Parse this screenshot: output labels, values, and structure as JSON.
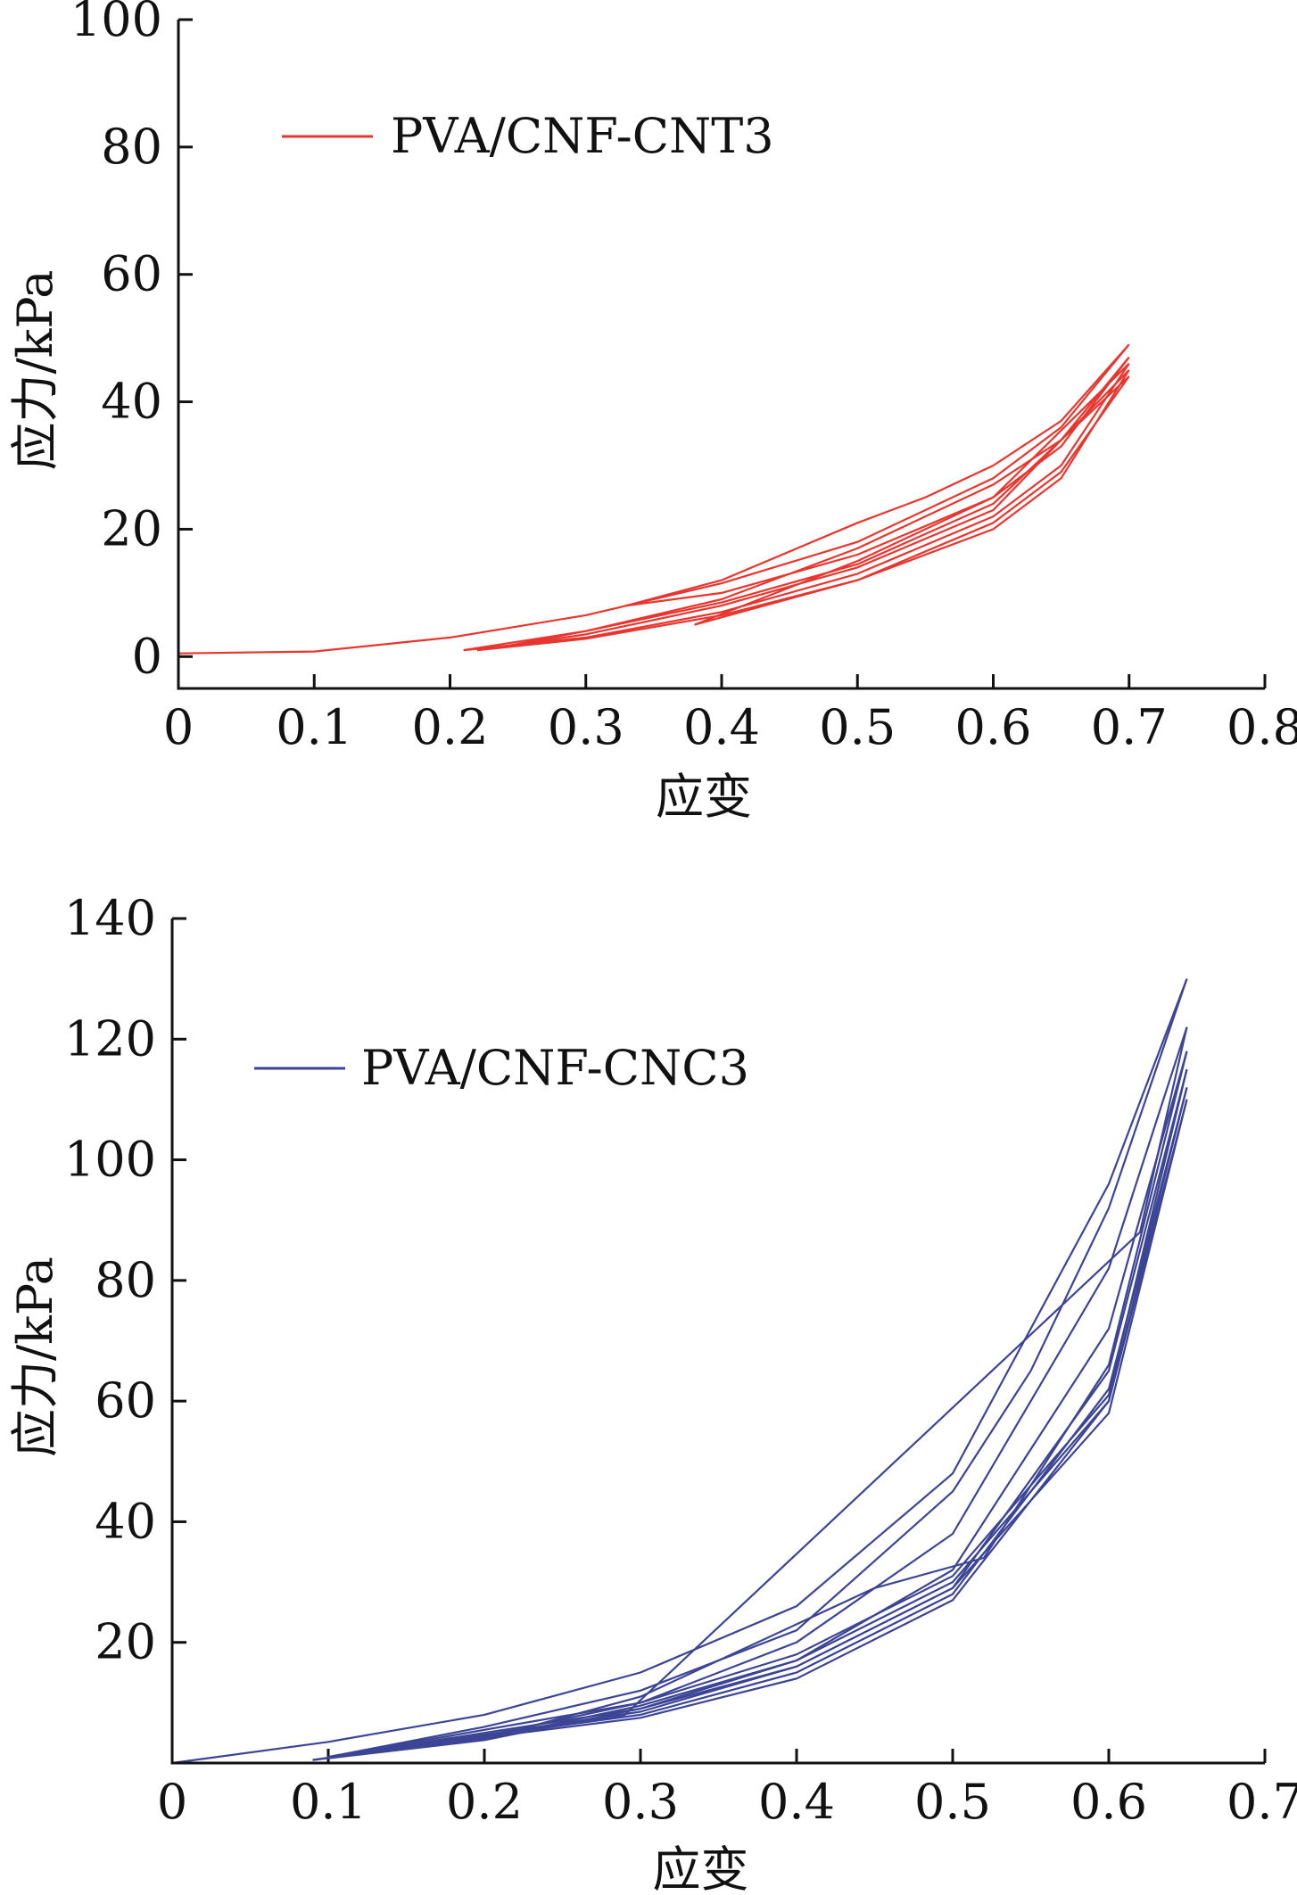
{
  "chart_data": [
    {
      "type": "line",
      "xlabel": "应变",
      "ylabel": "应力/kPa",
      "xlim": [
        0,
        0.8
      ],
      "ylim": [
        -5,
        100
      ],
      "xticks": [
        "0",
        "0.1",
        "0.2",
        "0.3",
        "0.4",
        "0.5",
        "0.6",
        "0.7",
        "0.8"
      ],
      "yticks": [
        "0",
        "20",
        "40",
        "60",
        "80",
        "100"
      ],
      "legend_position": "top-left",
      "grid": false,
      "series": [
        {
          "name": "PVA/CNF-CNT3",
          "color": "#e8352e",
          "cycles": [
            {
              "load": [
                [
                  0,
                  0.5
                ],
                [
                  0.1,
                  0.8
                ],
                [
                  0.2,
                  3
                ],
                [
                  0.3,
                  6.5
                ],
                [
                  0.4,
                  11.5
                ],
                [
                  0.5,
                  18
                ],
                [
                  0.6,
                  28
                ],
                [
                  0.65,
                  36
                ],
                [
                  0.7,
                  49
                ]
              ],
              "unload": [
                [
                  0.7,
                  49
                ],
                [
                  0.65,
                  37
                ],
                [
                  0.6,
                  30
                ],
                [
                  0.55,
                  25
                ],
                [
                  0.5,
                  21
                ],
                [
                  0.4,
                  12
                ],
                [
                  0.33,
                  8
                ]
              ]
            },
            {
              "load": [
                [
                  0.33,
                  8
                ],
                [
                  0.4,
                  10
                ],
                [
                  0.5,
                  16
                ],
                [
                  0.6,
                  25
                ],
                [
                  0.65,
                  33
                ],
                [
                  0.7,
                  47
                ]
              ],
              "unload": [
                [
                  0.7,
                  47
                ],
                [
                  0.65,
                  34
                ],
                [
                  0.6,
                  27
                ],
                [
                  0.5,
                  17
                ],
                [
                  0.4,
                  9
                ],
                [
                  0.3,
                  4
                ],
                [
                  0.21,
                  1
                ]
              ]
            },
            {
              "load": [
                [
                  0.21,
                  1
                ],
                [
                  0.3,
                  3
                ],
                [
                  0.4,
                  7
                ],
                [
                  0.5,
                  13
                ],
                [
                  0.6,
                  22
                ],
                [
                  0.65,
                  30
                ],
                [
                  0.7,
                  46
                ]
              ],
              "unload": [
                [
                  0.7,
                  46
                ],
                [
                  0.6,
                  25
                ],
                [
                  0.5,
                  15
                ],
                [
                  0.38,
                  5
                ]
              ]
            },
            {
              "load": [
                [
                  0.38,
                  5
                ],
                [
                  0.5,
                  12
                ],
                [
                  0.6,
                  20
                ],
                [
                  0.65,
                  28
                ],
                [
                  0.7,
                  45
                ]
              ],
              "unload": [
                [
                  0.7,
                  45
                ],
                [
                  0.6,
                  23
                ],
                [
                  0.5,
                  14
                ],
                [
                  0.4,
                  8
                ],
                [
                  0.3,
                  3.5
                ],
                [
                  0.22,
                  1
                ]
              ]
            },
            {
              "load": [
                [
                  0.22,
                  1
                ],
                [
                  0.3,
                  2.8
                ],
                [
                  0.4,
                  6.5
                ],
                [
                  0.5,
                  12
                ],
                [
                  0.6,
                  21
                ],
                [
                  0.65,
                  29
                ],
                [
                  0.7,
                  44
                ]
              ],
              "unload": [
                [
                  0.7,
                  44
                ],
                [
                  0.6,
                  24
                ],
                [
                  0.5,
                  14.5
                ],
                [
                  0.4,
                  8.5
                ],
                [
                  0.3,
                  4
                ],
                [
                  0.23,
                  1.2
                ]
              ]
            }
          ]
        }
      ]
    },
    {
      "type": "line",
      "xlabel": "应变",
      "ylabel": "应力/kPa",
      "xlim": [
        0,
        0.7
      ],
      "ylim": [
        0,
        140
      ],
      "xticks": [
        "0",
        "0.1",
        "0.2",
        "0.3",
        "0.4",
        "0.5",
        "0.6",
        "0.7"
      ],
      "yticks": [
        "20",
        "40",
        "60",
        "80",
        "100",
        "120",
        "140"
      ],
      "legend_position": "top-left",
      "grid": false,
      "series": [
        {
          "name": "PVA/CNF-CNC3",
          "color": "#3c4595",
          "cycles": [
            {
              "load": [
                [
                  0,
                  0
                ],
                [
                  0.1,
                  3.5
                ],
                [
                  0.2,
                  8
                ],
                [
                  0.3,
                  15
                ],
                [
                  0.4,
                  26
                ],
                [
                  0.5,
                  48
                ],
                [
                  0.6,
                  96
                ],
                [
                  0.65,
                  130
                ]
              ],
              "unload": [
                [
                  0.65,
                  130
                ],
                [
                  0.6,
                  92
                ],
                [
                  0.55,
                  65
                ],
                [
                  0.5,
                  45
                ],
                [
                  0.4,
                  22
                ],
                [
                  0.3,
                  12
                ],
                [
                  0.2,
                  6
                ],
                [
                  0.1,
                  1
                ]
              ]
            },
            {
              "load": [
                [
                  0.1,
                  1
                ],
                [
                  0.3,
                  10
                ],
                [
                  0.4,
                  20
                ],
                [
                  0.5,
                  38
                ],
                [
                  0.6,
                  82
                ],
                [
                  0.65,
                  122
                ]
              ],
              "unload": [
                [
                  0.65,
                  122
                ],
                [
                  0.62,
                  88
                ],
                [
                  0.29,
                  8
                ],
                [
                  0.22,
                  5
                ],
                [
                  0.1,
                  1
                ]
              ]
            },
            {
              "load": [
                [
                  0.1,
                  1
                ],
                [
                  0.3,
                  9
                ],
                [
                  0.4,
                  17
                ],
                [
                  0.5,
                  32
                ],
                [
                  0.6,
                  72
                ],
                [
                  0.65,
                  118
                ]
              ],
              "unload": [
                [
                  0.65,
                  118
                ],
                [
                  0.6,
                  66
                ],
                [
                  0.52,
                  34
                ],
                [
                  0.45,
                  29
                ],
                [
                  0.3,
                  11
                ],
                [
                  0.2,
                  4
                ],
                [
                  0.09,
                  0.5
                ]
              ]
            },
            {
              "load": [
                [
                  0.09,
                  0.5
                ],
                [
                  0.3,
                  8.5
                ],
                [
                  0.4,
                  16
                ],
                [
                  0.5,
                  29
                ],
                [
                  0.6,
                  65
                ],
                [
                  0.65,
                  115
                ]
              ],
              "unload": [
                [
                  0.65,
                  115
                ],
                [
                  0.6,
                  61
                ],
                [
                  0.5,
                  31
                ],
                [
                  0.4,
                  18
                ],
                [
                  0.3,
                  10
                ],
                [
                  0.2,
                  4.5
                ],
                [
                  0.1,
                  1
                ]
              ]
            },
            {
              "load": [
                [
                  0.1,
                  1
                ],
                [
                  0.3,
                  8
                ],
                [
                  0.4,
                  15
                ],
                [
                  0.5,
                  28
                ],
                [
                  0.6,
                  62
                ],
                [
                  0.65,
                  112
                ]
              ],
              "unload": [
                [
                  0.65,
                  112
                ],
                [
                  0.6,
                  60
                ],
                [
                  0.5,
                  30
                ],
                [
                  0.4,
                  17
                ],
                [
                  0.3,
                  9.5
                ],
                [
                  0.2,
                  4
                ],
                [
                  0.1,
                  1
                ]
              ]
            },
            {
              "load": [
                [
                  0.1,
                  1
                ],
                [
                  0.3,
                  7.5
                ],
                [
                  0.4,
                  14
                ],
                [
                  0.5,
                  27
                ],
                [
                  0.6,
                  60
                ],
                [
                  0.65,
                  110
                ]
              ],
              "unload": [
                [
                  0.65,
                  110
                ],
                [
                  0.6,
                  58
                ],
                [
                  0.5,
                  29
                ],
                [
                  0.4,
                  16
                ],
                [
                  0.3,
                  9
                ],
                [
                  0.2,
                  3.8
                ],
                [
                  0.1,
                  0.8
                ]
              ]
            }
          ]
        }
      ]
    }
  ]
}
